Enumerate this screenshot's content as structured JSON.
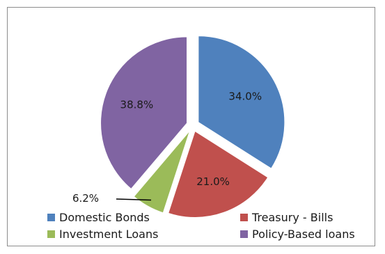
{
  "chart_data": {
    "type": "pie",
    "slices": [
      {
        "label": "Domestic Bonds",
        "value": 34.0,
        "display": "34.0%",
        "color": "#4f81bd"
      },
      {
        "label": "Treasury - Bills",
        "value": 21.0,
        "display": "21.0%",
        "color": "#c0504d"
      },
      {
        "label": "Investment Loans",
        "value": 6.2,
        "display": "6.2%",
        "color": "#9bbb59"
      },
      {
        "label": "Policy-Based loans",
        "value": 38.8,
        "display": "38.8%",
        "color": "#8064a2"
      }
    ],
    "start_angle": "12 o'clock",
    "direction": "clockwise",
    "exploded": true,
    "legend_position": "bottom",
    "title": "",
    "grid": false
  }
}
